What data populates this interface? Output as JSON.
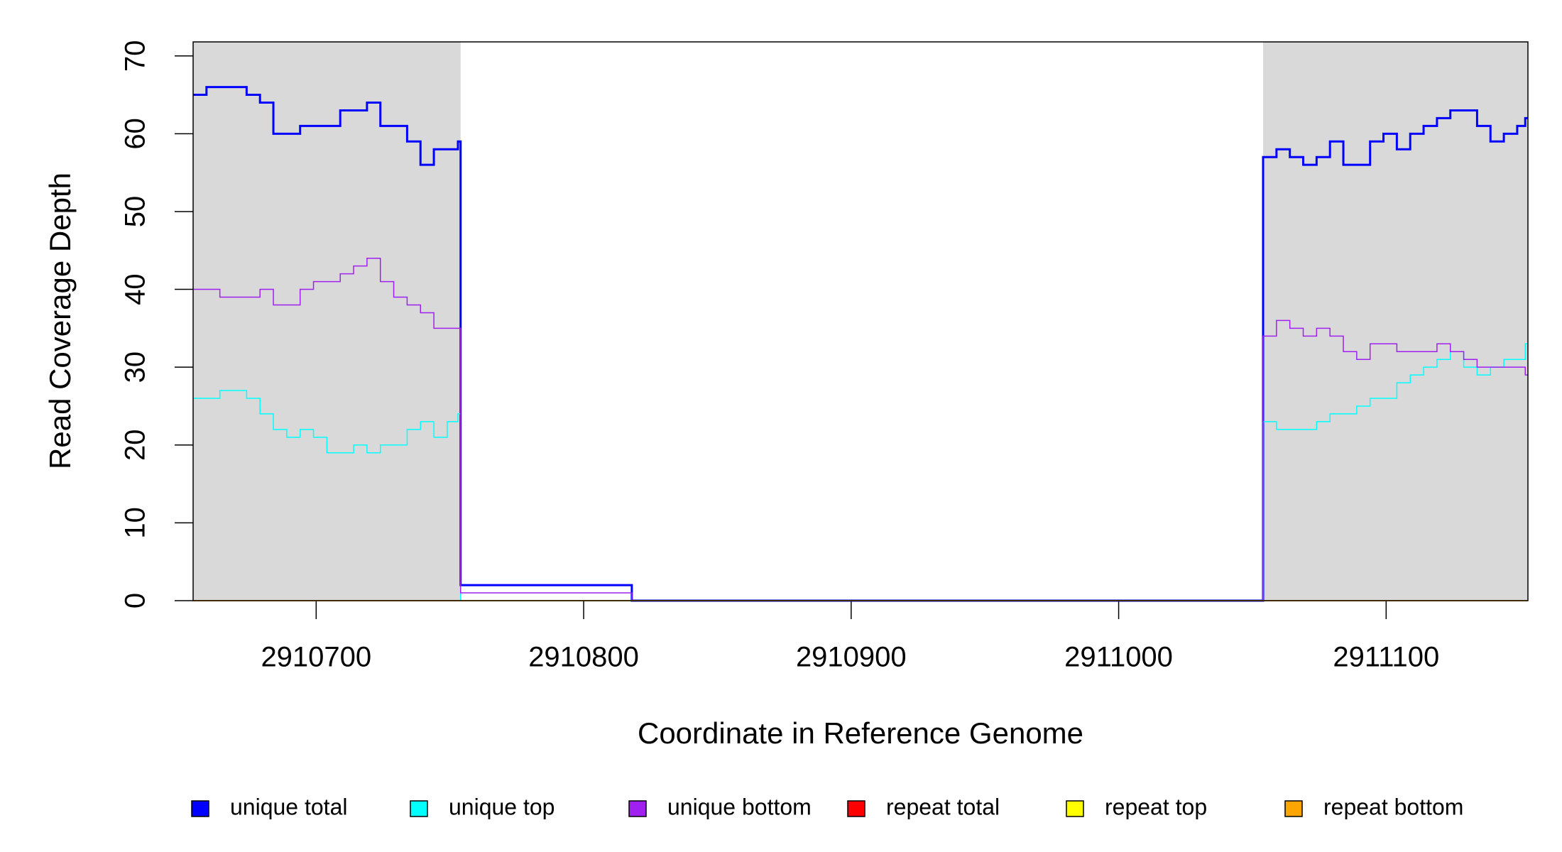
{
  "chart_data": {
    "type": "step",
    "xlabel": "Coordinate in Reference Genome",
    "ylabel": "Read Coverage Depth",
    "xlim": [
      2910654,
      2911153
    ],
    "ylim": [
      0,
      71.8
    ],
    "xticks": [
      2910700,
      2910800,
      2910900,
      2911000,
      2911100
    ],
    "yticks": [
      0,
      10,
      20,
      30,
      40,
      50,
      60,
      70
    ],
    "highlight_regions": [
      [
        2910654,
        2910754
      ],
      [
        2911054,
        2911153
      ]
    ],
    "highlight_color": "#d9d9d9",
    "legend": "bottom",
    "x": [
      2910654,
      2910659,
      2910664,
      2910669,
      2910674,
      2910679,
      2910684,
      2910689,
      2910694,
      2910699,
      2910704,
      2910709,
      2910714,
      2910719,
      2910724,
      2910729,
      2910734,
      2910739,
      2910744,
      2910749,
      2910753,
      2910754,
      2910818,
      2911054,
      2911059,
      2911064,
      2911069,
      2911074,
      2911079,
      2911084,
      2911089,
      2911094,
      2911099,
      2911104,
      2911109,
      2911114,
      2911119,
      2911124,
      2911129,
      2911134,
      2911139,
      2911144,
      2911149,
      2911152
    ],
    "series": [
      {
        "name": "unique total",
        "color": "#0000ff",
        "width": 3,
        "values": [
          65,
          66,
          66,
          66,
          65,
          64,
          60,
          60,
          61,
          61,
          61,
          63,
          63,
          64,
          61,
          61,
          59,
          56,
          58,
          58,
          59,
          2,
          0,
          57,
          58,
          57,
          56,
          57,
          59,
          56,
          56,
          59,
          60,
          58,
          60,
          61,
          62,
          63,
          63,
          61,
          59,
          60,
          61,
          62
        ]
      },
      {
        "name": "unique top",
        "color": "#00ffff",
        "width": 1.5,
        "values": [
          26,
          26,
          27,
          27,
          26,
          24,
          22,
          21,
          22,
          21,
          19,
          19,
          20,
          19,
          20,
          20,
          22,
          23,
          21,
          23,
          24,
          0,
          0,
          23,
          22,
          22,
          22,
          23,
          24,
          24,
          25,
          26,
          26,
          28,
          29,
          30,
          31,
          32,
          30,
          29,
          30,
          31,
          31,
          33
        ]
      },
      {
        "name": "unique bottom",
        "color": "#a020f0",
        "width": 1.5,
        "values": [
          40,
          40,
          39,
          39,
          39,
          40,
          38,
          38,
          40,
          41,
          41,
          42,
          43,
          44,
          41,
          39,
          38,
          37,
          35,
          35,
          35,
          1,
          0,
          34,
          36,
          35,
          34,
          35,
          34,
          32,
          31,
          33,
          33,
          32,
          32,
          32,
          33,
          32,
          31,
          30,
          30,
          30,
          30,
          29
        ]
      },
      {
        "name": "repeat total",
        "color": "#ff0000",
        "width": 1.5,
        "values": [
          0,
          0,
          0,
          0,
          0,
          0,
          0,
          0,
          0,
          0,
          0,
          0,
          0,
          0,
          0,
          0,
          0,
          0,
          0,
          0,
          0,
          0,
          0,
          0,
          0,
          0,
          0,
          0,
          0,
          0,
          0,
          0,
          0,
          0,
          0,
          0,
          0,
          0,
          0,
          0,
          0,
          0,
          0,
          0
        ]
      },
      {
        "name": "repeat top",
        "color": "#ffff00",
        "width": 1.5,
        "values": [
          0,
          0,
          0,
          0,
          0,
          0,
          0,
          0,
          0,
          0,
          0,
          0,
          0,
          0,
          0,
          0,
          0,
          0,
          0,
          0,
          0,
          0,
          0,
          0,
          0,
          0,
          0,
          0,
          0,
          0,
          0,
          0,
          0,
          0,
          0,
          0,
          0,
          0,
          0,
          0,
          0,
          0,
          0,
          0
        ]
      },
      {
        "name": "repeat bottom",
        "color": "#ffa500",
        "width": 1.5,
        "values": [
          0,
          0,
          0,
          0,
          0,
          0,
          0,
          0,
          0,
          0,
          0,
          0,
          0,
          0,
          0,
          0,
          0,
          0,
          0,
          0,
          0,
          0,
          0,
          0,
          0,
          0,
          0,
          0,
          0,
          0,
          0,
          0,
          0,
          0,
          0,
          0,
          0,
          0,
          0,
          0,
          0,
          0,
          0,
          0
        ]
      }
    ]
  }
}
